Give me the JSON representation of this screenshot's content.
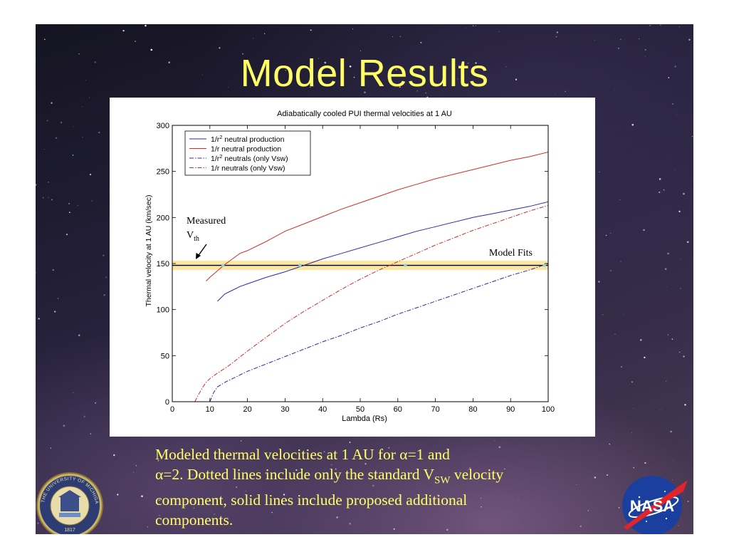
{
  "slide": {
    "title": "Model Results",
    "caption": {
      "line1": "Modeled thermal velocities at 1 AU for α=1 and",
      "line2_a": "α=2. Dotted lines include only the standard V",
      "line2_sub": "SW",
      "line2_b": " velocity",
      "line3": "component, solid lines include proposed additional",
      "line4": "components."
    },
    "logos": {
      "left": {
        "icon": "university-of-michigan-seal-icon",
        "text_top": "THE UNIVERSITY OF MICHIGAN",
        "year": "1817"
      },
      "right": {
        "icon": "nasa-logo-icon",
        "text": "NASA"
      }
    }
  },
  "colors": {
    "title": "#ffff66",
    "caption": "#ffff66",
    "series_blue": "#2a2aa8",
    "series_red": "#d22b2b",
    "band": "#fbe7a1"
  },
  "chart_data": {
    "type": "line",
    "title": "Adiabatically cooled PUI thermal velocities at 1 AU",
    "xlabel": "Lambda (Rs)",
    "ylabel": "Thermal velocity at 1 AU (km/sec)",
    "xlim": [
      0,
      100
    ],
    "ylim": [
      0,
      300
    ],
    "xticks": [
      0,
      10,
      20,
      30,
      40,
      50,
      60,
      70,
      80,
      90,
      100
    ],
    "yticks": [
      0,
      50,
      100,
      150,
      200,
      250,
      300
    ],
    "grid": false,
    "legend_position": "top-left",
    "series": [
      {
        "name_prefix": "1/r",
        "name_sup": "2",
        "name_suffix": " neutral production",
        "color": "#2a2aa8",
        "dash": "solid",
        "x": [
          12,
          14,
          16,
          18,
          20,
          25,
          30,
          35,
          40,
          45,
          50,
          55,
          60,
          65,
          70,
          75,
          80,
          85,
          90,
          95,
          100
        ],
        "y": [
          109,
          117,
          121,
          125,
          128,
          135,
          141,
          148,
          155,
          161,
          167,
          173,
          179,
          185,
          190,
          195,
          200,
          204,
          208,
          212,
          217
        ]
      },
      {
        "name_prefix": "1/r",
        "name_sup": "",
        "name_suffix": " neutral production",
        "color": "#d22b2b",
        "dash": "solid",
        "x": [
          9,
          10,
          12,
          14,
          16,
          18,
          20,
          25,
          30,
          35,
          40,
          45,
          50,
          55,
          60,
          65,
          70,
          75,
          80,
          85,
          90,
          95,
          100
        ],
        "y": [
          131,
          135,
          142,
          149,
          155,
          161,
          164,
          174,
          185,
          193,
          201,
          209,
          216,
          223,
          230,
          236,
          242,
          247,
          252,
          257,
          262,
          266,
          271
        ]
      },
      {
        "name_prefix": "1/r",
        "name_sup": "2",
        "name_suffix": " neutrals (only Vsw)",
        "color": "#2a2aa8",
        "dash": "dashdot",
        "x": [
          10,
          11,
          12,
          14,
          16,
          18,
          20,
          25,
          30,
          35,
          40,
          45,
          50,
          55,
          60,
          65,
          70,
          75,
          80,
          85,
          90,
          95,
          100
        ],
        "y": [
          0,
          10,
          16,
          21,
          25,
          29,
          33,
          41,
          49,
          57,
          65,
          72,
          80,
          87,
          95,
          102,
          109,
          116,
          123,
          130,
          137,
          143,
          150
        ]
      },
      {
        "name_prefix": "1/r",
        "name_sup": "",
        "name_suffix": " neutrals (only Vsw)",
        "color": "#d22b2b",
        "dash": "dashdot",
        "x": [
          6,
          7,
          8,
          9,
          10,
          12,
          15,
          20,
          25,
          30,
          35,
          40,
          45,
          50,
          55,
          60,
          65,
          70,
          75,
          80,
          85,
          90,
          95,
          100
        ],
        "y": [
          0,
          8,
          15,
          21,
          25,
          31,
          39,
          55,
          70,
          85,
          98,
          110,
          122,
          133,
          143,
          152,
          161,
          170,
          178,
          186,
          193,
          200,
          207,
          213
        ]
      }
    ],
    "reference_band": {
      "y": 148,
      "y_low": 143,
      "y_high": 153
    },
    "fit_points": [
      {
        "x": 13.5,
        "y": 148
      },
      {
        "x": 34,
        "y": 148
      },
      {
        "x": 62,
        "y": 148
      },
      {
        "x": 99,
        "y": 148
      }
    ],
    "annotations": {
      "measured_line1": "Measured",
      "measured_line2_a": "V",
      "measured_line2_sub": "th",
      "model_fits": "Model Fits"
    }
  }
}
